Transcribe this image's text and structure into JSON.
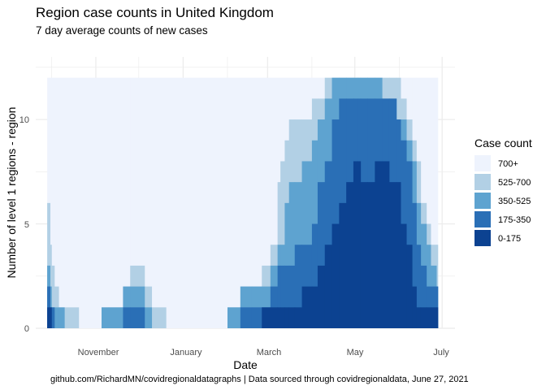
{
  "chart_data": {
    "type": "area",
    "title": "Region case counts in United Kingdom",
    "subtitle": "7 day average counts of new cases",
    "xlabel": "Date",
    "ylabel": "Number of level 1 regions - region",
    "caption": "github.com/RichardMN/covidregionaldatagraphs | Data sourced through covidregionaldata, June 27, 2021",
    "x_ticks": [
      "November",
      "January",
      "March",
      "May",
      "July"
    ],
    "y_ticks": [
      "0",
      "5",
      "10"
    ],
    "ylim": [
      0,
      13
    ],
    "legend": {
      "title": "Case count",
      "position": "right"
    },
    "series": [
      {
        "name": "700+",
        "color": "#eef3fd"
      },
      {
        "name": "525-700",
        "color": "#b2d0e5"
      },
      {
        "name": "350-525",
        "color": "#5ea3d0"
      },
      {
        "name": "175-350",
        "color": "#2a6fb6"
      },
      {
        "name": "0-175",
        "color": "#0c4291"
      }
    ],
    "total_regions": 12,
    "cumulative_counts": {
      "dates": [
        "2020-09-28",
        "2020-09-30",
        "2020-10-01",
        "2020-10-03",
        "2020-10-06",
        "2020-10-10",
        "2020-10-20",
        "2020-11-05",
        "2020-11-10",
        "2020-11-20",
        "2020-11-25",
        "2020-12-05",
        "2020-12-10",
        "2020-12-20",
        "2021-01-20",
        "2021-02-01",
        "2021-02-10",
        "2021-02-18",
        "2021-02-25",
        "2021-03-03",
        "2021-03-08",
        "2021-03-10",
        "2021-03-13",
        "2021-03-16",
        "2021-03-20",
        "2021-03-25",
        "2021-04-01",
        "2021-04-05",
        "2021-04-10",
        "2021-04-15",
        "2021-04-20",
        "2021-04-25",
        "2021-04-30",
        "2021-05-03",
        "2021-05-05",
        "2021-05-10",
        "2021-05-15",
        "2021-05-20",
        "2021-05-25",
        "2021-05-30",
        "2021-06-02",
        "2021-06-06",
        "2021-06-10",
        "2021-06-13",
        "2021-06-16",
        "2021-06-20",
        "2021-06-23",
        "2021-06-27"
      ],
      "le_175": [
        1,
        1,
        0,
        0,
        0,
        0,
        0,
        0,
        0,
        0,
        0,
        0,
        0,
        0,
        0,
        0,
        0,
        0,
        1,
        1,
        1,
        1,
        1,
        1,
        1,
        2,
        2,
        3,
        4,
        5,
        6,
        7,
        8,
        8,
        7,
        7,
        8,
        8,
        7,
        7,
        5,
        4,
        2,
        1,
        1,
        1,
        1,
        1
      ],
      "le_350": [
        2,
        1,
        1,
        0,
        0,
        0,
        0,
        0,
        0,
        1,
        1,
        0,
        0,
        0,
        0,
        0,
        1,
        1,
        1,
        2,
        3,
        3,
        3,
        3,
        4,
        4,
        5,
        7,
        8,
        10,
        11,
        11,
        11,
        11,
        11,
        11,
        11,
        11,
        11,
        10,
        9,
        8,
        6,
        4,
        3,
        2,
        2,
        2
      ],
      "le_525": [
        3,
        2,
        1,
        1,
        1,
        0,
        0,
        1,
        1,
        2,
        2,
        1,
        0,
        0,
        0,
        1,
        2,
        2,
        2,
        3,
        4,
        4,
        6,
        7,
        7,
        8,
        9,
        10,
        11,
        12,
        12,
        12,
        12,
        12,
        12,
        12,
        12,
        11,
        11,
        10,
        10,
        9,
        8,
        6,
        5,
        4,
        3,
        2
      ],
      "le_700": [
        6,
        4,
        3,
        2,
        1,
        1,
        0,
        1,
        1,
        2,
        3,
        2,
        1,
        0,
        0,
        1,
        2,
        2,
        3,
        4,
        7,
        8,
        9,
        10,
        10,
        10,
        11,
        11,
        12,
        12,
        12,
        12,
        12,
        12,
        12,
        12,
        12,
        12,
        12,
        12,
        11,
        10,
        9,
        8,
        6,
        5,
        4,
        4
      ]
    }
  }
}
